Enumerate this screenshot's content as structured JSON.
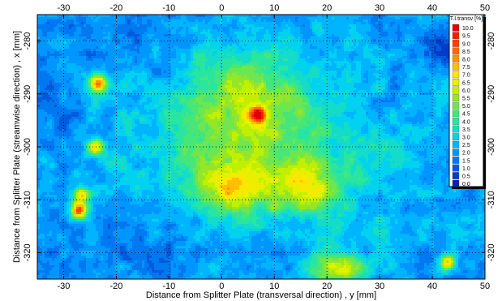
{
  "chart_data": {
    "type": "heatmap",
    "xlabel": "Distance from Splitter Plate (transversal direction) , y [mm]",
    "ylabel": "Distance from Splitter Plate (streamwise direction) , x [mm]",
    "xlim": [
      -35,
      50
    ],
    "ylim": [
      -325,
      -275
    ],
    "x_ticks": [
      -30,
      -20,
      -10,
      0,
      10,
      20,
      30,
      40,
      50
    ],
    "y_ticks": [
      -280,
      -290,
      -300,
      -310,
      -320
    ],
    "grid": true,
    "colorbar": {
      "title": "T.I.transv [%]",
      "labels": [
        "10.0",
        "9.5",
        "9.0",
        "8.5",
        "8.0",
        "7.5",
        "7.0",
        "6.5",
        "6.0",
        "5.5",
        "5.0",
        "4.5",
        "4.0",
        "3.5",
        "3.0",
        "2.5",
        "2.0",
        "1.5",
        "1.0",
        "0.5",
        "0.0"
      ],
      "colors": [
        "#e00000",
        "#f41e00",
        "#ff4000",
        "#ff6a00",
        "#ff9400",
        "#ffbe00",
        "#ffe600",
        "#e6f000",
        "#c0f000",
        "#96e628",
        "#6ee650",
        "#46e678",
        "#28e6a0",
        "#14dcc8",
        "#00d2f0",
        "#00b4ff",
        "#0096ff",
        "#0078f0",
        "#005adc",
        "#003cc8",
        "#0028a0"
      ],
      "vmin": 0,
      "vmax": 10
    },
    "field": {
      "background_value": 2.2,
      "features": [
        {
          "x": 5,
          "y": -290,
          "sx": 9,
          "sy": 6,
          "value": 2.8
        },
        {
          "x": 8,
          "y": -303,
          "sx": 16,
          "sy": 8,
          "value": 2.5
        },
        {
          "x": 2,
          "y": -308,
          "sx": 4,
          "sy": 3,
          "value": 3.0
        },
        {
          "x": 16,
          "y": -308,
          "sx": 4,
          "sy": 3,
          "value": 2.8
        },
        {
          "x": 22,
          "y": -323,
          "sx": 4,
          "sy": 2,
          "value": 4.2
        },
        {
          "x": 7,
          "y": -294,
          "sx": 1.2,
          "sy": 1.2,
          "value": 5.5
        },
        {
          "x": -23.5,
          "y": -288,
          "sx": 1.2,
          "sy": 1.2,
          "value": 6.5
        },
        {
          "x": -27,
          "y": -312,
          "sx": 1.2,
          "sy": 1.2,
          "value": 6.5
        },
        {
          "x": -26.5,
          "y": -309,
          "sx": 1,
          "sy": 0.8,
          "value": 5.0
        },
        {
          "x": 43,
          "y": -322,
          "sx": 1,
          "sy": 1,
          "value": 5.0
        },
        {
          "x": -24,
          "y": -300,
          "sx": 1,
          "sy": 1,
          "value": 4.5
        },
        {
          "x": 42,
          "y": -281,
          "sx": 3,
          "sy": 2,
          "value": -1.3
        },
        {
          "x": 48,
          "y": -300,
          "sx": 3,
          "sy": 8,
          "value": -0.9
        },
        {
          "x": -18,
          "y": -280,
          "sx": 6,
          "sy": 4,
          "value": -0.7
        },
        {
          "x": -32,
          "y": -292,
          "sx": 3,
          "sy": 8,
          "value": -0.6
        },
        {
          "x": -15,
          "y": -318,
          "sx": 8,
          "sy": 5,
          "value": -0.6
        }
      ]
    }
  }
}
